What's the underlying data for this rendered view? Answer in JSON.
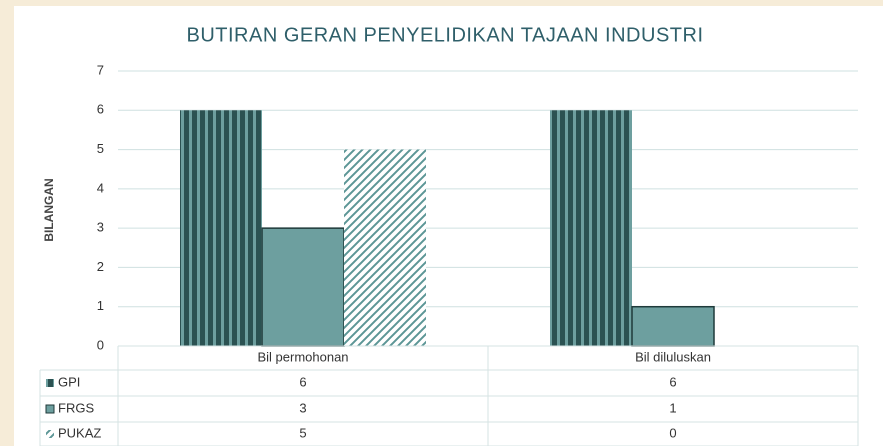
{
  "chart_data": {
    "type": "bar",
    "title": "BUTIRAN GERAN PENYELIDIKAN TAJAAN INDUSTRI",
    "y_label": "BILANGAN",
    "categories": [
      "Bil permohonan",
      "Bil diluluskan"
    ],
    "series": [
      {
        "name": "GPI",
        "color": "#2b5252",
        "pattern": "vertical",
        "values": [
          6,
          6
        ]
      },
      {
        "name": "FRGS",
        "color": "#6d9f9f",
        "pattern": "solid",
        "values": [
          3,
          1
        ]
      },
      {
        "name": "PUKAZ",
        "color": "#5c9696",
        "pattern": "diagonal",
        "values": [
          5,
          0
        ]
      }
    ],
    "ylim": [
      0,
      7
    ],
    "yticks": [
      0,
      1,
      2,
      3,
      4,
      5,
      6,
      7
    ],
    "grid": true,
    "data_table": true
  }
}
